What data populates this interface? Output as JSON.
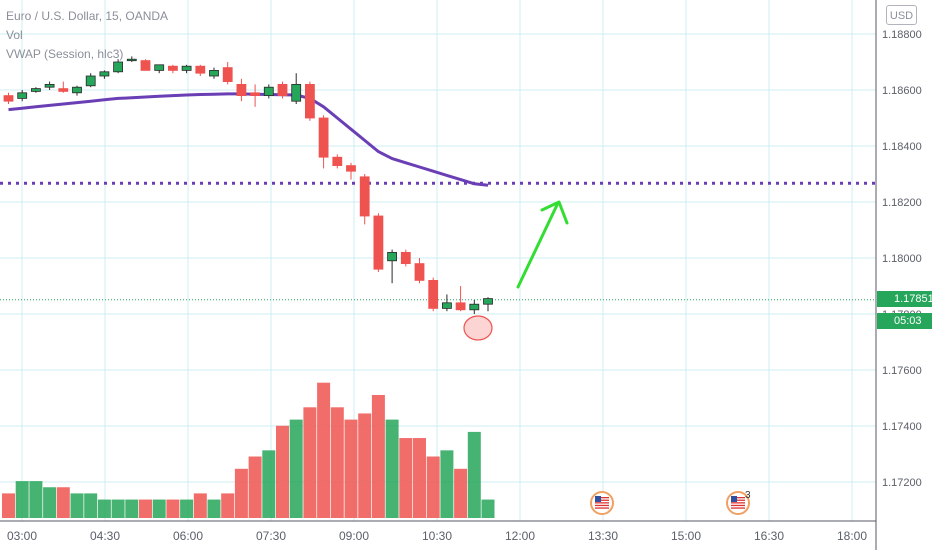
{
  "header": {
    "symbol_line": "Euro / U.S. Dollar, 15, OANDA",
    "vol_line": "Vol",
    "vwap_line": "VWAP (Session, hlc3)"
  },
  "currency_button": "USD",
  "price_label": "1.17851",
  "countdown_label": "05:03",
  "event_badge_count": "3",
  "colors": {
    "up": "#26a65b",
    "down": "#ef5350",
    "vwap": "#6a3fb5",
    "arrow": "#33dd33",
    "grid": "#cfeef0"
  },
  "icons": [
    "us-flag-event-icon",
    "us-flag-event-icon"
  ],
  "chart_data": {
    "type": "candlestick",
    "y_ticks": [
      "1.18800",
      "1.18600",
      "1.18400",
      "1.18200",
      "1.18000",
      "1.17800",
      "1.17600",
      "1.17400",
      "1.17200"
    ],
    "x_ticks": [
      "03:00",
      "04:30",
      "06:00",
      "07:30",
      "09:00",
      "10:30",
      "12:00",
      "13:30",
      "15:00",
      "16:30",
      "18:00"
    ],
    "ylim": [
      1.1705,
      1.1897
    ],
    "grid": true,
    "last_price": 1.17851,
    "horizontal_line": 1.18267,
    "candles": [
      {
        "o": 1.1858,
        "h": 1.1859,
        "l": 1.1855,
        "c": 1.1856
      },
      {
        "o": 1.1857,
        "h": 1.186,
        "l": 1.1856,
        "c": 1.1859
      },
      {
        "o": 1.18595,
        "h": 1.1861,
        "l": 1.1859,
        "c": 1.18605
      },
      {
        "o": 1.1861,
        "h": 1.1863,
        "l": 1.186,
        "c": 1.1862
      },
      {
        "o": 1.18605,
        "h": 1.1863,
        "l": 1.1859,
        "c": 1.18595
      },
      {
        "o": 1.1859,
        "h": 1.18615,
        "l": 1.1858,
        "c": 1.1861
      },
      {
        "o": 1.18615,
        "h": 1.1866,
        "l": 1.1861,
        "c": 1.1865
      },
      {
        "o": 1.1865,
        "h": 1.1867,
        "l": 1.1864,
        "c": 1.18665
      },
      {
        "o": 1.18665,
        "h": 1.1871,
        "l": 1.1866,
        "c": 1.187
      },
      {
        "o": 1.1871,
        "h": 1.1872,
        "l": 1.187,
        "c": 1.1871
      },
      {
        "o": 1.18705,
        "h": 1.1871,
        "l": 1.1867,
        "c": 1.1867
      },
      {
        "o": 1.1867,
        "h": 1.1869,
        "l": 1.1866,
        "c": 1.1869
      },
      {
        "o": 1.18685,
        "h": 1.1869,
        "l": 1.1866,
        "c": 1.1867
      },
      {
        "o": 1.1867,
        "h": 1.1869,
        "l": 1.1866,
        "c": 1.18685
      },
      {
        "o": 1.18685,
        "h": 1.1869,
        "l": 1.1865,
        "c": 1.1866
      },
      {
        "o": 1.1865,
        "h": 1.1868,
        "l": 1.1864,
        "c": 1.1867
      },
      {
        "o": 1.1868,
        "h": 1.187,
        "l": 1.1862,
        "c": 1.1863
      },
      {
        "o": 1.1862,
        "h": 1.1864,
        "l": 1.1856,
        "c": 1.1858
      },
      {
        "o": 1.1859,
        "h": 1.1862,
        "l": 1.1854,
        "c": 1.1858
      },
      {
        "o": 1.1858,
        "h": 1.1862,
        "l": 1.1857,
        "c": 1.1861
      },
      {
        "o": 1.1862,
        "h": 1.1863,
        "l": 1.1857,
        "c": 1.1858
      },
      {
        "o": 1.1856,
        "h": 1.1866,
        "l": 1.1855,
        "c": 1.1862
      },
      {
        "o": 1.1862,
        "h": 1.1863,
        "l": 1.1849,
        "c": 1.185
      },
      {
        "o": 1.185,
        "h": 1.1851,
        "l": 1.1832,
        "c": 1.1836
      },
      {
        "o": 1.1836,
        "h": 1.1837,
        "l": 1.1832,
        "c": 1.1833
      },
      {
        "o": 1.1833,
        "h": 1.1834,
        "l": 1.1828,
        "c": 1.1831
      },
      {
        "o": 1.1829,
        "h": 1.183,
        "l": 1.1812,
        "c": 1.1815
      },
      {
        "o": 1.1815,
        "h": 1.1816,
        "l": 1.1795,
        "c": 1.1796
      },
      {
        "o": 1.1799,
        "h": 1.1803,
        "l": 1.1791,
        "c": 1.1802
      },
      {
        "o": 1.1802,
        "h": 1.1803,
        "l": 1.1797,
        "c": 1.1798
      },
      {
        "o": 1.1798,
        "h": 1.18,
        "l": 1.1791,
        "c": 1.1792
      },
      {
        "o": 1.1792,
        "h": 1.1793,
        "l": 1.1781,
        "c": 1.1782
      },
      {
        "o": 1.1782,
        "h": 1.1787,
        "l": 1.1781,
        "c": 1.1784
      },
      {
        "o": 1.1784,
        "h": 1.179,
        "l": 1.1781,
        "c": 1.17815
      },
      {
        "o": 1.17815,
        "h": 1.1785,
        "l": 1.178,
        "c": 1.17835
      },
      {
        "o": 1.17835,
        "h": 1.1786,
        "l": 1.1781,
        "c": 1.17855
      }
    ],
    "volume": [
      2,
      3,
      3,
      2.5,
      2.5,
      2,
      2,
      1.5,
      1.5,
      1.5,
      1.5,
      1.5,
      1.5,
      1.5,
      2,
      1.5,
      2,
      4,
      5,
      5.5,
      7.5,
      8,
      9,
      11,
      9,
      8,
      8.5,
      10,
      8,
      6.5,
      6.5,
      5,
      5.5,
      4,
      7,
      1.5
    ],
    "vwap": [
      1.1853,
      1.18535,
      1.1854,
      1.18545,
      1.1855,
      1.18555,
      1.1856,
      1.18565,
      1.1857,
      1.18572,
      1.18575,
      1.18578,
      1.1858,
      1.18582,
      1.18584,
      1.18585,
      1.18586,
      1.18586,
      1.18585,
      1.18584,
      1.18583,
      1.18582,
      1.1857,
      1.1854,
      1.185,
      1.1846,
      1.1842,
      1.1838,
      1.18355,
      1.1834,
      1.18325,
      1.1831,
      1.18295,
      1.1828,
      1.18265,
      1.1826
    ]
  }
}
